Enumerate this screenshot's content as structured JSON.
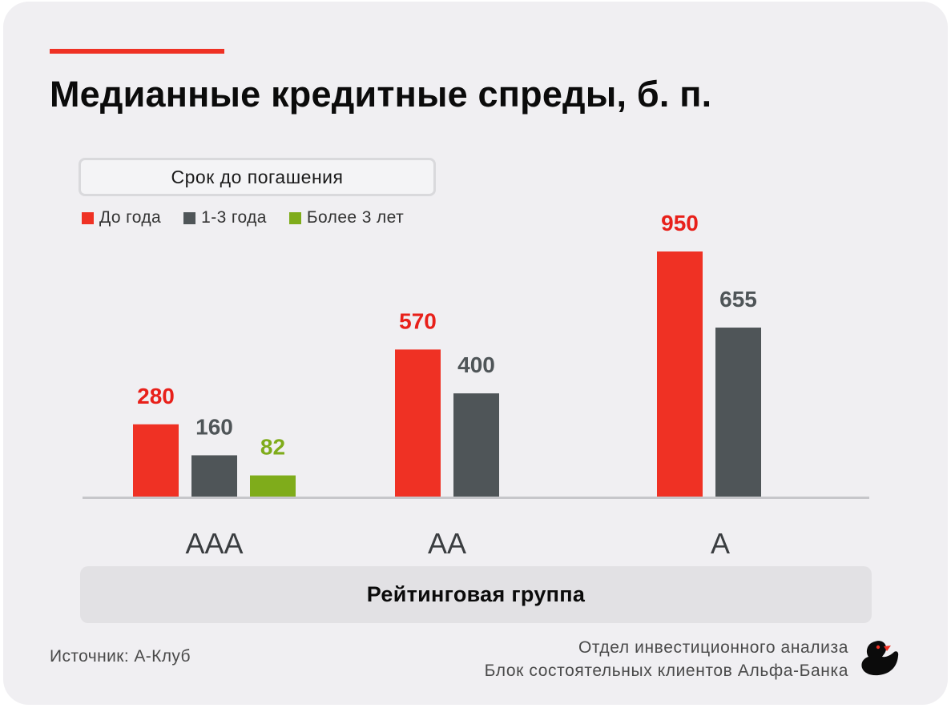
{
  "title": "Медианные кредитные спреды, б. п.",
  "legend": {
    "title": "Срок до погашения",
    "items": [
      {
        "label": "До года",
        "color": "#ef3124"
      },
      {
        "label": "1-3 года",
        "color": "#4f5558"
      },
      {
        "label": "Более 3 лет",
        "color": "#7fac1b"
      }
    ]
  },
  "x_axis_title": "Рейтинговая группа",
  "footer": {
    "source": "Источник: А-Клуб",
    "dept_line1": "Отдел инвестиционного анализа",
    "dept_line2": "Блок состоятельных клиентов Альфа-Банка",
    "logo_icon": "duck-icon"
  },
  "chart_data": {
    "type": "bar",
    "categories": [
      "AAA",
      "AA",
      "A"
    ],
    "series": [
      {
        "name": "До года",
        "color": "#ef3124",
        "label_color": "#e8201a",
        "values": [
          280,
          570,
          950
        ]
      },
      {
        "name": "1-3 года",
        "color": "#4f5558",
        "label_color": "#4f5558",
        "values": [
          160,
          400,
          655
        ]
      },
      {
        "name": "Более 3 лет",
        "color": "#7fac1b",
        "label_color": "#7fac1b",
        "values": [
          82,
          null,
          null
        ]
      }
    ],
    "title": "Медианные кредитные спреды, б. п.",
    "xlabel": "Рейтинговая группа",
    "ylabel": "",
    "ylim": [
      0,
      950
    ],
    "grid": false,
    "legend_position": "top-left"
  }
}
